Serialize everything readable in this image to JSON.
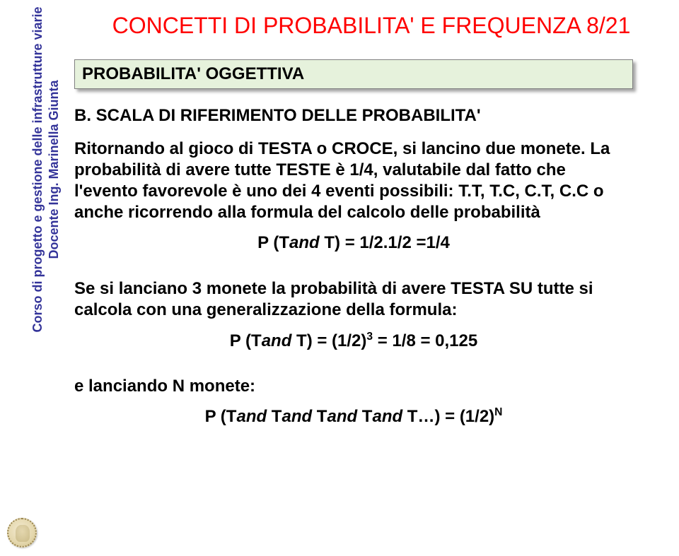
{
  "colors": {
    "title": "#ff0000",
    "sidebar_text": "#333399",
    "subtitle_bg": "#e6f2dc",
    "subtitle_border": "#808080",
    "body_text": "#000000",
    "page_bg": "#ffffff"
  },
  "typography": {
    "title_fontsize": 32,
    "subtitle_fontsize": 24,
    "body_fontsize": 24,
    "sidebar_fontsize": 18,
    "body_weight": "bold",
    "sidebar_font": "Comic Sans MS",
    "main_font": "Arial"
  },
  "title": "CONCETTI DI PROBABILITA' E FREQUENZA 8/21",
  "sidebar": {
    "line1": "Corso di progetto e gestione delle infrastrutture viarie",
    "line2": "Docente Ing. Marinella Giunta"
  },
  "subtitle": "PROBABILITA' OGGETTIVA",
  "section_heading": "B. SCALA DI RIFERIMENTO DELLE PROBABILITA'",
  "para1": "Ritornando al gioco di TESTA o CROCE, si lancino due monete. La probabilità di avere tutte TESTE è 1/4, valutabile dal fatto che l'evento favorevole è uno dei 4 eventi possibili: T.T, T.C, C.T, C.C o anche ricorrendo alla formula del calcolo delle probabilità",
  "formula1_pre": "P (T",
  "formula1_and": "and",
  "formula1_post": " T) = 1/2.1/2 =1/4",
  "para2": "Se si lanciano  3 monete la probabilità di avere TESTA SU tutte si calcola con una generalizzazione della formula:",
  "formula2_pre": "P (T",
  "formula2_and": "and",
  "formula2_mid": " T) = (1/2)",
  "formula2_sup": "3",
  "formula2_post": " = 1/8 = 0,125",
  "para3": "e lanciando N monete:",
  "formula3_pre": "P (T",
  "formula3_and": "and",
  "formula3_mid1": " T",
  "formula3_mid2": " T",
  "formula3_mid3": " T",
  "formula3_post": " T…) = (1/2)",
  "formula3_sup": "N"
}
